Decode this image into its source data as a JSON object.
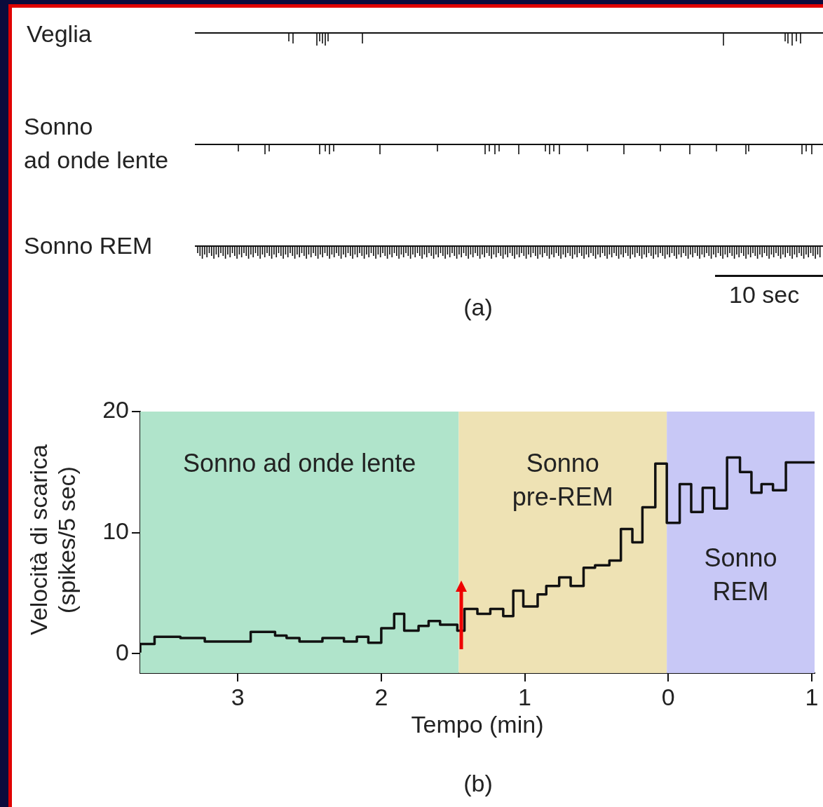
{
  "chart_data": [
    {
      "type": "other",
      "annotations": [
        "Veglia",
        "Sonno\nad onde lente",
        "Sonno REM",
        "10 sec",
        "(a)"
      ]
    },
    {
      "type": "step",
      "xlabel": "Tempo (min)",
      "ylabel": "Velocità di scarica (spikes/5 sec)",
      "xlim": [
        -3.68,
        1.02
      ],
      "ylim": [
        -1.6,
        20
      ],
      "xticks": [
        {
          "value": -3,
          "label": "3"
        },
        {
          "value": -2,
          "label": "2"
        },
        {
          "value": -1,
          "label": "1"
        },
        {
          "value": 0,
          "label": "0"
        },
        {
          "value": 1,
          "label": "1"
        }
      ],
      "yticks": [
        0,
        10,
        20
      ],
      "bands": [
        {
          "axis": "x",
          "from": -3.68,
          "to": -1.46,
          "label": "Sonno ad onde lente",
          "color": "#b0e4cb"
        },
        {
          "axis": "x",
          "from": -1.46,
          "to": -0.01,
          "label": "Sonno pre-REM",
          "color": "#eee2b4"
        },
        {
          "axis": "x",
          "from": -0.01,
          "to": 1.02,
          "label": "Sonno REM",
          "color": "#c8c8f6"
        }
      ],
      "series": [
        {
          "color": "#111111",
          "x": [
            -3.68,
            -3.58,
            -3.4,
            -3.23,
            -2.91,
            -2.74,
            -2.66,
            -2.57,
            -2.41,
            -2.26,
            -2.17,
            -2.09,
            -2.0,
            -1.91,
            -1.84,
            -1.74,
            -1.67,
            -1.59,
            -1.47,
            -1.42,
            -1.33,
            -1.24,
            -1.15,
            -1.08,
            -1.01,
            -0.91,
            -0.85,
            -0.76,
            -0.68,
            -0.59,
            -0.51,
            -0.41,
            -0.33,
            -0.25,
            -0.18,
            -0.09,
            -0.01,
            0.08,
            0.16,
            0.24,
            0.32,
            0.41,
            0.5,
            0.58,
            0.65,
            0.73,
            0.82,
            0.9,
            1.02
          ],
          "values": [
            0.1,
            0.8,
            1.4,
            1.3,
            1.0,
            1.8,
            1.5,
            1.3,
            1.0,
            1.3,
            1.0,
            1.4,
            0.9,
            2.1,
            3.3,
            1.9,
            2.3,
            2.7,
            2.4,
            1.9,
            3.7,
            3.3,
            3.7,
            3.1,
            5.2,
            3.9,
            4.9,
            5.6,
            6.3,
            5.6,
            7.1,
            7.3,
            7.7,
            10.3,
            9.2,
            12.1,
            15.7,
            10.8,
            14.0,
            11.7,
            13.7,
            12.0,
            16.2,
            15.0,
            13.3,
            14.0,
            13.5,
            15.8,
            15.8
          ]
        }
      ],
      "annotations": [
        "(b)"
      ]
    }
  ]
}
